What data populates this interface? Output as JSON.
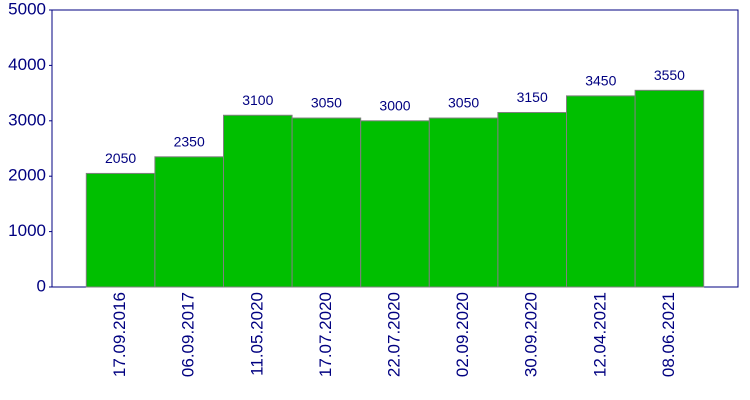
{
  "chart_data": {
    "type": "bar",
    "categories": [
      "17.09.2016",
      "06.09.2017",
      "11.05.2020",
      "17.07.2020",
      "22.07.2020",
      "02.09.2020",
      "30.09.2020",
      "12.04.2021",
      "08.06.2021"
    ],
    "values": [
      2050,
      2350,
      3100,
      3050,
      3000,
      3050,
      3150,
      3450,
      3550
    ],
    "color": "#00bf00",
    "ylim": [
      0,
      5000
    ],
    "yticks": [
      0,
      1000,
      2000,
      3000,
      4000,
      5000
    ],
    "grid": false
  }
}
